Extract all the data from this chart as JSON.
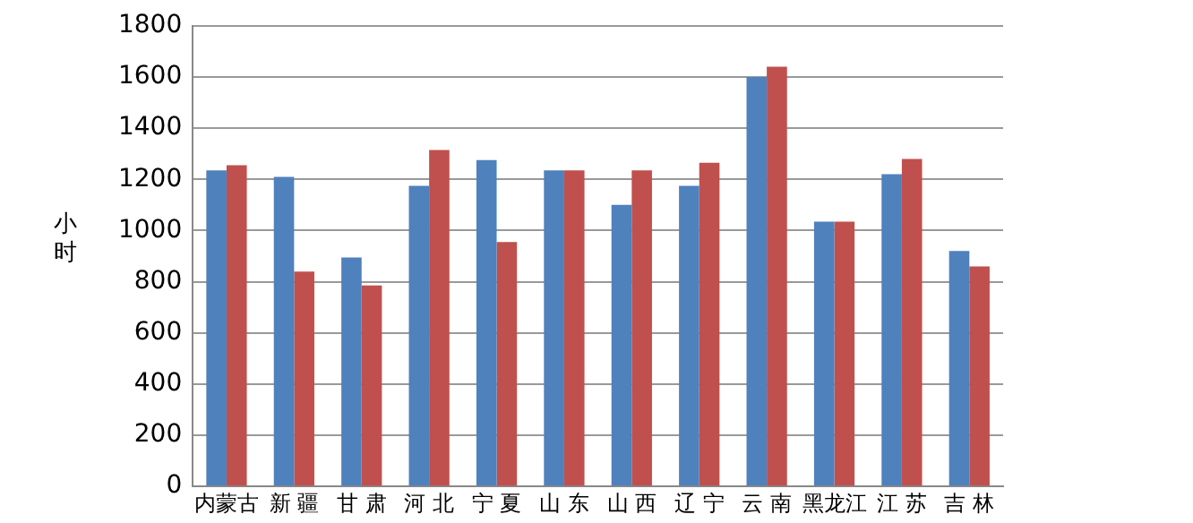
{
  "chart_data": {
    "type": "bar",
    "ylabel": "小时",
    "categories": [
      "内蒙古",
      "新 疆",
      "甘 肃",
      "河 北",
      "宁 夏",
      "山 东",
      "山 西",
      "辽 宁",
      "云 南",
      "黑龙江",
      "江 苏",
      "吉 林"
    ],
    "series": [
      {
        "color": "#4f81bd",
        "values": [
          1235,
          1210,
          895,
          1175,
          1275,
          1235,
          1100,
          1175,
          1600,
          1035,
          1220,
          920
        ]
      },
      {
        "color": "#c0504d",
        "values": [
          1255,
          840,
          785,
          1315,
          955,
          1235,
          1235,
          1265,
          1640,
          1035,
          1280,
          860
        ]
      }
    ],
    "ylim": [
      0,
      1800
    ],
    "yticks": [
      0,
      200,
      400,
      600,
      800,
      1000,
      1200,
      1400,
      1600,
      1800
    ],
    "grid": "y",
    "legend": false
  }
}
